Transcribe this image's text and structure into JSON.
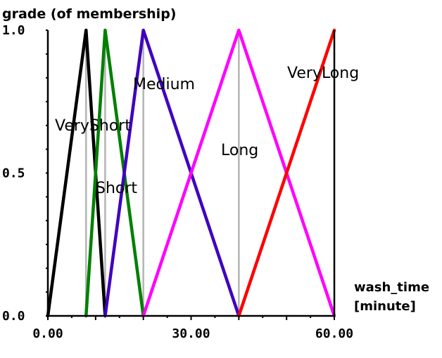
{
  "chart_data": {
    "type": "line",
    "ylabel": "grade (of membership)",
    "xlabel_line1": "wash_time",
    "xlabel_line2": "[minute]",
    "xlim": [
      0,
      60
    ],
    "ylim": [
      0,
      1
    ],
    "x_ticks": [
      {
        "value": 0,
        "label": "0.00"
      },
      {
        "value": 30,
        "label": "30.00"
      },
      {
        "value": 60,
        "label": "60.00"
      }
    ],
    "y_ticks": [
      {
        "value": 0,
        "label": "0.0"
      },
      {
        "value": 0.5,
        "label": "0.5"
      },
      {
        "value": 1,
        "label": "1.0"
      }
    ],
    "gridlines_x": [
      8,
      12,
      20,
      40
    ],
    "series": [
      {
        "name": "VeryShort",
        "color": "#000000",
        "x": [
          0,
          8,
          12
        ],
        "y": [
          0,
          1,
          0
        ]
      },
      {
        "name": "Short",
        "color": "#008000",
        "x": [
          8,
          12,
          20
        ],
        "y": [
          0,
          1,
          0
        ]
      },
      {
        "name": "Medium",
        "color": "#4000c0",
        "x": [
          12,
          20,
          40
        ],
        "y": [
          0,
          1,
          0
        ]
      },
      {
        "name": "Long",
        "color": "#ff00ff",
        "x": [
          20,
          40,
          60
        ],
        "y": [
          0,
          1,
          0
        ]
      },
      {
        "name": "VeryLong",
        "color": "#ff0000",
        "x": [
          40,
          60
        ],
        "y": [
          0,
          1
        ]
      }
    ]
  }
}
